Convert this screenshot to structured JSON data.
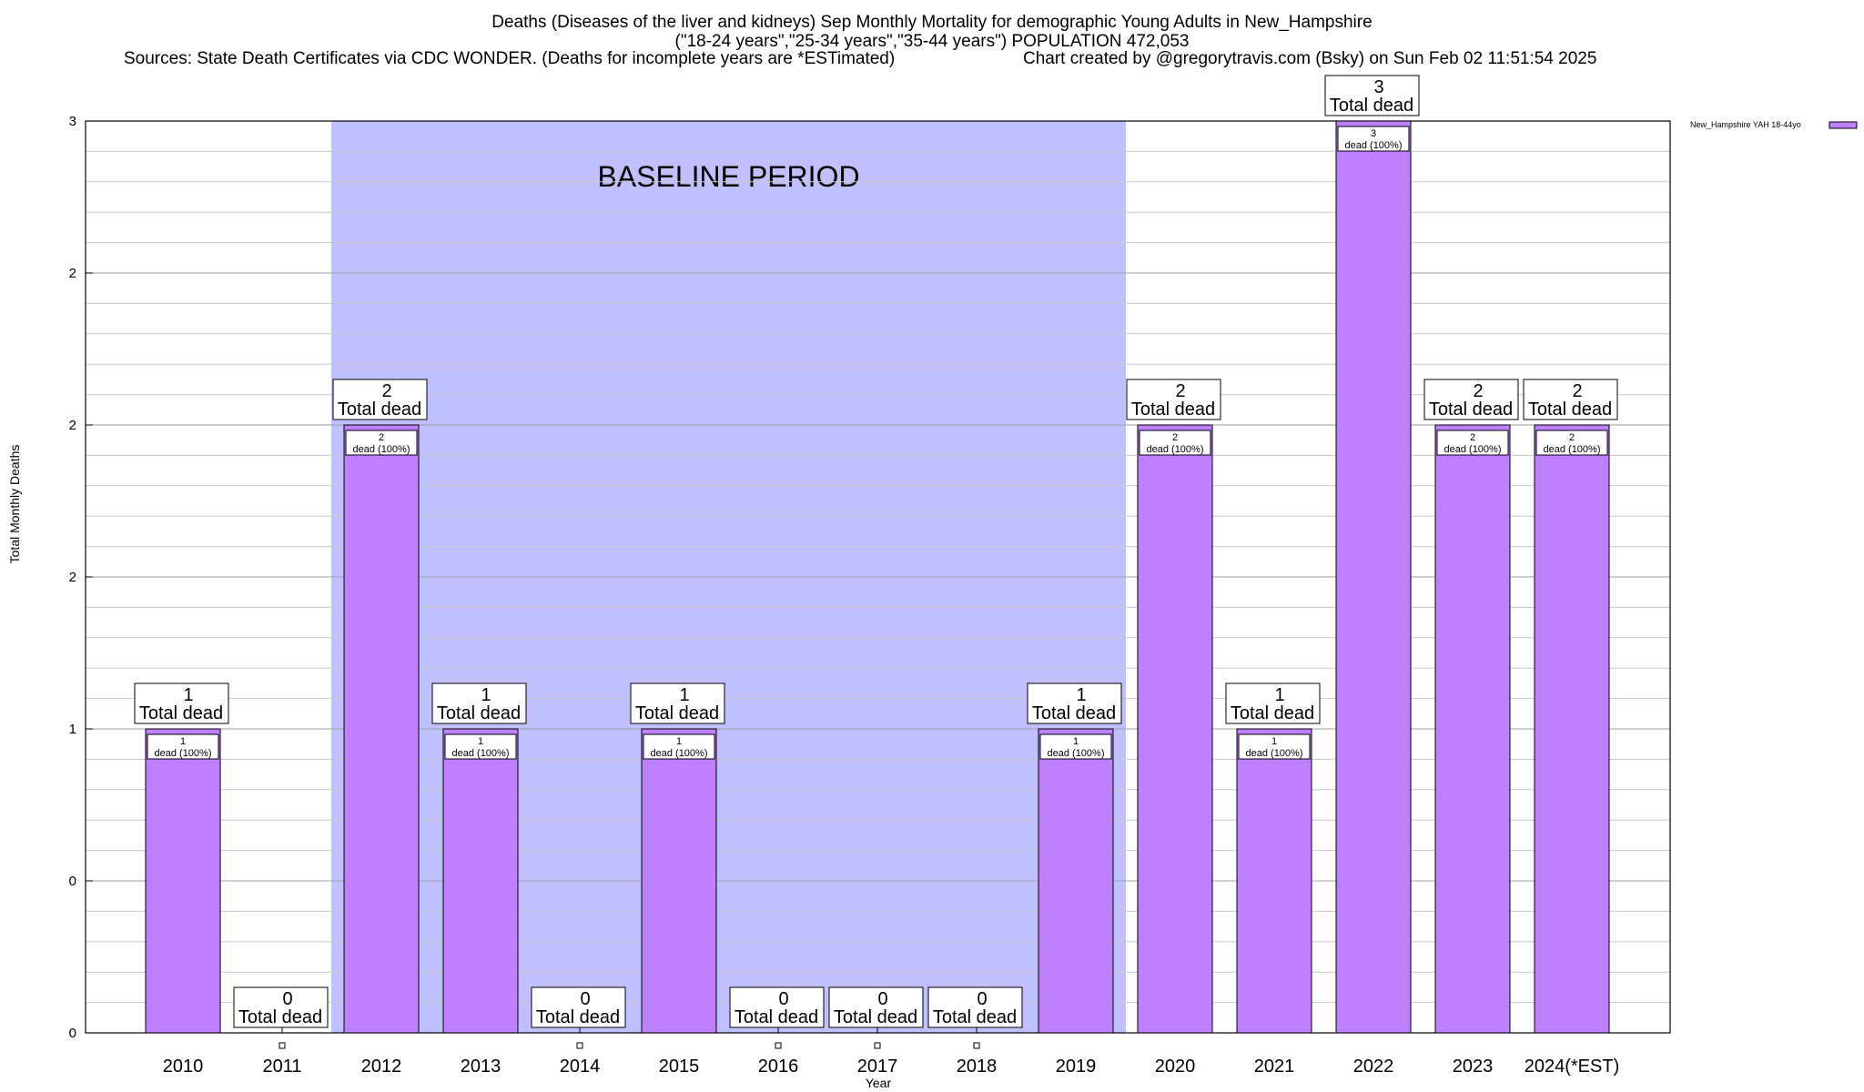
{
  "header": {
    "title_line1": "Deaths (Diseases of the liver and kidneys) Sep Monthly Mortality for demographic Young Adults in New_Hampshire",
    "title_line2": "(\"18-24 years\",\"25-34 years\",\"35-44 years\") POPULATION 472,053",
    "sources": "Sources: State Death Certificates via CDC WONDER. (Deaths for incomplete years are *ESTimated)",
    "credit": "Chart created by @gregorytravis.com (Bsky) on Sun Feb 02 11:51:54 2025"
  },
  "chart_data": {
    "type": "bar",
    "title": "Deaths (Diseases of the liver and kidneys) Sep Monthly Mortality for demographic Young Adults in New_Hampshire",
    "xlabel": "Year",
    "ylabel": "Total Monthly Deaths",
    "categories": [
      "2010",
      "2011",
      "2012",
      "2013",
      "2014",
      "2015",
      "2016",
      "2017",
      "2018",
      "2019",
      "2020",
      "2021",
      "2022",
      "2023",
      "2024(*EST)"
    ],
    "series": [
      {
        "name": "New_Hampshire YAH 18-44yo",
        "color": "#bf80ff",
        "values": [
          1,
          0,
          2,
          1,
          0,
          1,
          0,
          0,
          0,
          1,
          2,
          1,
          3,
          2,
          2
        ]
      }
    ],
    "total_label_suffix": "Total dead",
    "inner_label_suffix": "dead (100%)",
    "ylim": [
      0,
      3
    ],
    "yticks": [
      0,
      0.5,
      1,
      1.5,
      2,
      2.5,
      3
    ],
    "ytick_labels": [
      "0",
      "0",
      "1",
      "2",
      "2",
      "2",
      "3"
    ],
    "baseline": {
      "label": "BASELINE PERIOD",
      "from": "2012",
      "to": "2019",
      "color": "#c0c0ff"
    },
    "grid": true,
    "legend_position": "top-right"
  }
}
